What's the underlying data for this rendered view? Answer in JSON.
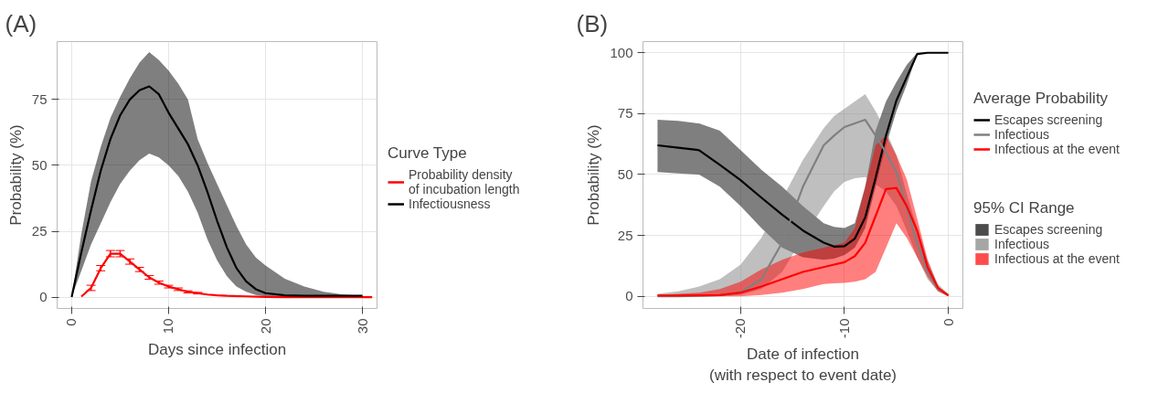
{
  "chart_data": [
    {
      "type": "line",
      "title": "(A)",
      "xlabel": "Days since infection",
      "ylabel": "Probability (%)",
      "legend_title": "Curve Type",
      "legend": "right",
      "grid": true,
      "xlim": [
        -1.5,
        31.5
      ],
      "ylim": [
        -4.3,
        97
      ],
      "xticks": [
        0,
        10,
        20,
        30
      ],
      "yticks": [
        0,
        25,
        50,
        75
      ],
      "series": [
        {
          "name": "Probability density\nof incubation length",
          "color": "#ff0000",
          "x": [
            1,
            2,
            3,
            4,
            5,
            6,
            7,
            8,
            9,
            10,
            11,
            12,
            13,
            14,
            15,
            16,
            18,
            20,
            22,
            25,
            31
          ],
          "values": [
            0.2,
            3.5,
            11,
            16.5,
            16.5,
            13.5,
            10.5,
            7.5,
            5.5,
            4,
            3,
            2,
            1.5,
            1,
            0.7,
            0.5,
            0.3,
            0.1,
            0,
            0,
            0
          ],
          "errors": [
            null,
            1,
            1,
            1.2,
            1.2,
            1,
            0.8,
            0.7,
            0.6,
            0.5,
            0.5,
            0.4,
            0.3,
            null,
            null,
            null,
            null,
            null,
            null,
            null,
            null
          ]
        },
        {
          "name": "Infectiousness",
          "color": "#000000",
          "x": [
            0,
            1,
            2,
            3,
            4,
            5,
            6,
            7,
            8,
            9,
            10,
            11,
            12,
            13,
            14,
            15,
            16,
            17,
            18,
            19,
            20,
            22,
            24,
            26,
            28,
            30
          ],
          "values": [
            0,
            17,
            33,
            48,
            60,
            69,
            75,
            78.5,
            80,
            77,
            70,
            64,
            58,
            50,
            40,
            29,
            19,
            11,
            6,
            3,
            1.5,
            0.7,
            0.5,
            0.5,
            0.5,
            0.5
          ],
          "lower": [
            0,
            10,
            20,
            28,
            36,
            43,
            48,
            52,
            54.5,
            53,
            50,
            46,
            40,
            32,
            22,
            14,
            8,
            4,
            2,
            0.8,
            0.3,
            0,
            0,
            0,
            0,
            0
          ],
          "upper": [
            0,
            24,
            44,
            57,
            68,
            76,
            83,
            89,
            93,
            90,
            86,
            81,
            75,
            60,
            51,
            43,
            35,
            27,
            20,
            15,
            12,
            7,
            4,
            2,
            1,
            0.5
          ]
        }
      ]
    },
    {
      "type": "line",
      "title": "(B)",
      "xlabel": "Date of infection\n(with respect to event date)",
      "ylabel": "Probability (%)",
      "legend_title": [
        "Average Probability",
        "95% CI Range"
      ],
      "legend": "right",
      "grid": true,
      "xlim": [
        -29.4,
        1.4
      ],
      "ylim": [
        -5,
        104.6
      ],
      "xticks": [
        -20,
        -10,
        0
      ],
      "yticks": [
        0,
        25,
        50,
        75,
        100
      ],
      "x": [
        -28,
        -26,
        -24,
        -22,
        -20,
        -18,
        -16,
        -14,
        -12,
        -11,
        -10,
        -9,
        -8,
        -7,
        -6,
        -5,
        -4,
        -3,
        -2,
        -1,
        0
      ],
      "series": [
        {
          "name": "Escapes screening",
          "color": "#000000",
          "values": [
            62,
            61,
            60,
            54,
            47.7,
            40.5,
            33.5,
            27,
            22,
            20.4,
            20.6,
            23.7,
            32.4,
            48.7,
            66,
            80.4,
            90,
            99.5,
            100,
            100,
            100
          ],
          "lower": [
            51,
            50.5,
            50,
            45,
            37,
            28,
            20,
            16,
            15,
            15.5,
            17,
            20,
            28,
            45,
            62,
            76,
            87,
            99.5,
            100,
            100,
            100
          ],
          "upper": [
            72.5,
            72,
            71,
            68,
            60,
            52,
            45,
            37,
            30,
            28.5,
            28,
            30,
            45,
            68,
            80,
            88,
            95,
            100,
            100,
            100,
            100
          ]
        },
        {
          "name": "Infectious",
          "color": "#808080",
          "values": [
            0,
            0,
            0.2,
            0.5,
            1.5,
            7,
            22,
            45,
            62,
            66,
            69.5,
            71,
            72.5,
            66,
            59,
            51,
            36,
            22,
            10,
            3,
            0.5
          ],
          "lower": [
            0,
            0,
            0,
            0,
            0.5,
            3,
            10,
            24,
            37,
            43,
            47,
            48.5,
            49,
            46,
            43,
            37,
            27,
            16,
            7,
            2,
            0
          ],
          "upper": [
            1,
            2,
            4,
            7,
            13,
            24,
            40,
            56,
            69,
            74,
            77,
            80,
            83,
            76,
            68,
            58,
            42,
            28,
            15,
            5,
            1
          ]
        },
        {
          "name": "Infectious at the event",
          "color": "#ff0000",
          "values": [
            0.3,
            0.3,
            0.4,
            0.5,
            1.5,
            4,
            7,
            10,
            12,
            13,
            14,
            16.5,
            22,
            33,
            44,
            44.5,
            37,
            27,
            12,
            3.5,
            0.3
          ],
          "lower": [
            0,
            0,
            0,
            0,
            0,
            0.5,
            1.5,
            3,
            5,
            5.3,
            5.5,
            6,
            7,
            10,
            20,
            30,
            24,
            16,
            8,
            2,
            0
          ],
          "upper": [
            0.5,
            1,
            1.5,
            3,
            6,
            11,
            15,
            18,
            20,
            21,
            22,
            28,
            45,
            62,
            66,
            58,
            48,
            32,
            15,
            4,
            0.5
          ]
        }
      ]
    }
  ]
}
